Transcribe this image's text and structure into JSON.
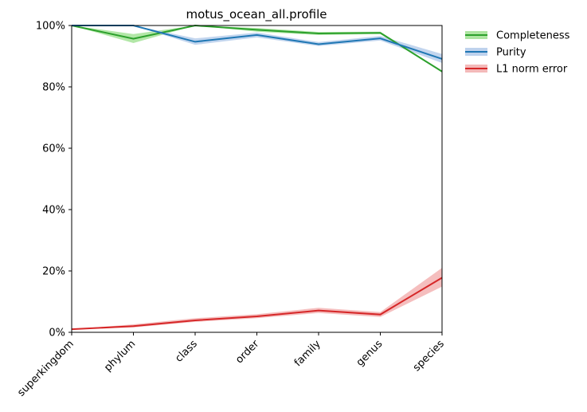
{
  "chart_data": {
    "type": "line",
    "title": "motus_ocean_all.profile",
    "xlabel": "",
    "ylabel": "",
    "categories": [
      "superkingdom",
      "phylum",
      "class",
      "order",
      "family",
      "genus",
      "species"
    ],
    "yticks": [
      "0%",
      "20%",
      "40%",
      "60%",
      "80%",
      "100%"
    ],
    "ylim": [
      0,
      100
    ],
    "grid": false,
    "legend_position": "outside-right-top",
    "series": [
      {
        "name": "Completeness",
        "color": "#2ca02c",
        "band_color": "#98df8a",
        "values": [
          100,
          95.7,
          100,
          98.6,
          97.4,
          97.6,
          85.0
        ],
        "lower": [
          100,
          94.3,
          100,
          98.0,
          96.9,
          97.2,
          85.0
        ],
        "upper": [
          100,
          97.2,
          100,
          99.2,
          97.9,
          98.0,
          85.0
        ]
      },
      {
        "name": "Purity",
        "color": "#1f77b4",
        "band_color": "#aec7e8",
        "values": [
          100,
          100,
          94.7,
          96.9,
          93.9,
          95.8,
          89.1
        ],
        "lower": [
          100,
          100,
          93.7,
          96.1,
          93.3,
          95.1,
          87.8
        ],
        "upper": [
          100,
          100,
          95.8,
          97.7,
          94.6,
          96.6,
          90.7
        ]
      },
      {
        "name": "L1 norm error",
        "color": "#d62728",
        "band_color": "#f1a8a8",
        "values": [
          1.0,
          2.0,
          3.9,
          5.2,
          7.1,
          5.8,
          17.8
        ],
        "lower": [
          1.0,
          1.6,
          3.4,
          4.6,
          6.3,
          5.0,
          14.9
        ],
        "upper": [
          1.0,
          2.6,
          4.6,
          5.9,
          8.0,
          6.6,
          21.0
        ]
      }
    ]
  }
}
